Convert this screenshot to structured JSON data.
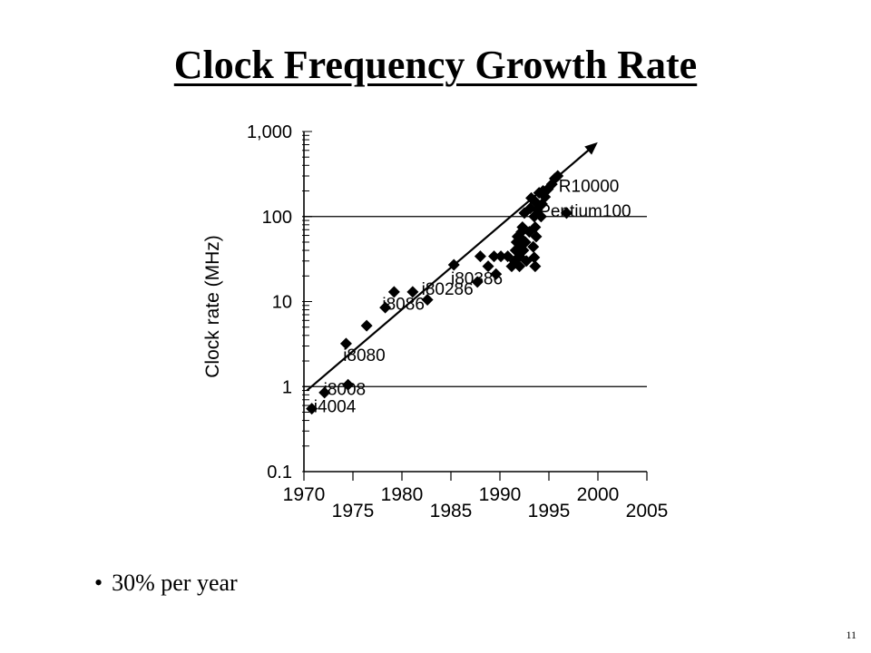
{
  "slide": {
    "title": "Clock Frequency Growth Rate",
    "bullet_symbol": "•",
    "bullet": "30% per year",
    "page_number": "11"
  },
  "chart_data": {
    "type": "scatter",
    "title": "",
    "xlabel": "",
    "ylabel": "Clock rate (MHz)",
    "x_scale": "linear",
    "y_scale": "log",
    "xlim": [
      1970,
      2005
    ],
    "ylim": [
      0.1,
      1000
    ],
    "x_ticks_lower": [
      "1975",
      "1985",
      "1995",
      "2005"
    ],
    "x_ticks_upper": [
      "1970",
      "1980",
      "1990",
      "2000"
    ],
    "y_ticks": [
      {
        "value": 1000,
        "label": "1,000"
      },
      {
        "value": 100,
        "label": "100"
      },
      {
        "value": 10,
        "label": "10"
      },
      {
        "value": 1,
        "label": "1"
      },
      {
        "value": 0.1,
        "label": "0.1"
      }
    ],
    "gridlines_y": [
      1,
      100
    ],
    "marker": "diamond",
    "marker_color": "#000000",
    "trend_line": {
      "x1": 1970.3,
      "y1": 0.9,
      "x2": 1999.7,
      "y2": 700,
      "arrow": true
    },
    "annotations": [
      {
        "text": "i4004",
        "x": 1971,
        "y": 0.5
      },
      {
        "text": "i8008",
        "x": 1972,
        "y": 0.8
      },
      {
        "text": "i8080",
        "x": 1974,
        "y": 2
      },
      {
        "text": "i8086",
        "x": 1978,
        "y": 8
      },
      {
        "text": "i80286",
        "x": 1982,
        "y": 12
      },
      {
        "text": "i80386",
        "x": 1985,
        "y": 16
      },
      {
        "text": "Pentium100",
        "x": 1994,
        "y": 100
      },
      {
        "text": "R10000",
        "x": 1996,
        "y": 195
      }
    ],
    "points": [
      {
        "x": 1970.8,
        "y": 0.55
      },
      {
        "x": 1972.1,
        "y": 0.85
      },
      {
        "x": 1974.5,
        "y": 1.05
      },
      {
        "x": 1974.3,
        "y": 3.2
      },
      {
        "x": 1976.4,
        "y": 5.2
      },
      {
        "x": 1978.3,
        "y": 8.5
      },
      {
        "x": 1979.2,
        "y": 13
      },
      {
        "x": 1981.1,
        "y": 13
      },
      {
        "x": 1982.6,
        "y": 10.5
      },
      {
        "x": 1985.3,
        "y": 27
      },
      {
        "x": 1987.7,
        "y": 17
      },
      {
        "x": 1988.0,
        "y": 34
      },
      {
        "x": 1988.8,
        "y": 26
      },
      {
        "x": 1989.4,
        "y": 34
      },
      {
        "x": 1989.6,
        "y": 21
      },
      {
        "x": 1990.1,
        "y": 34
      },
      {
        "x": 1990.8,
        "y": 34
      },
      {
        "x": 1991.2,
        "y": 26
      },
      {
        "x": 1991.5,
        "y": 30
      },
      {
        "x": 1991.6,
        "y": 40
      },
      {
        "x": 1991.7,
        "y": 50
      },
      {
        "x": 1991.8,
        "y": 58
      },
      {
        "x": 1992.0,
        "y": 26
      },
      {
        "x": 1992.0,
        "y": 34
      },
      {
        "x": 1992.1,
        "y": 45
      },
      {
        "x": 1992.2,
        "y": 55
      },
      {
        "x": 1992.2,
        "y": 66
      },
      {
        "x": 1992.3,
        "y": 75
      },
      {
        "x": 1992.4,
        "y": 40
      },
      {
        "x": 1992.5,
        "y": 110
      },
      {
        "x": 1992.6,
        "y": 50
      },
      {
        "x": 1992.7,
        "y": 30
      },
      {
        "x": 1993.0,
        "y": 66
      },
      {
        "x": 1993.1,
        "y": 125
      },
      {
        "x": 1993.2,
        "y": 165
      },
      {
        "x": 1993.4,
        "y": 44
      },
      {
        "x": 1993.5,
        "y": 100
      },
      {
        "x": 1993.5,
        "y": 33
      },
      {
        "x": 1993.6,
        "y": 150
      },
      {
        "x": 1993.6,
        "y": 26
      },
      {
        "x": 1993.6,
        "y": 75
      },
      {
        "x": 1993.7,
        "y": 58
      },
      {
        "x": 1993.8,
        "y": 120
      },
      {
        "x": 1994.0,
        "y": 190
      },
      {
        "x": 1994.2,
        "y": 100
      },
      {
        "x": 1994.3,
        "y": 140
      },
      {
        "x": 1994.4,
        "y": 200
      },
      {
        "x": 1994.6,
        "y": 170
      },
      {
        "x": 1994.9,
        "y": 210
      },
      {
        "x": 1995.3,
        "y": 240
      },
      {
        "x": 1995.6,
        "y": 280
      },
      {
        "x": 1995.9,
        "y": 300
      },
      {
        "x": 1996.8,
        "y": 110
      }
    ]
  }
}
